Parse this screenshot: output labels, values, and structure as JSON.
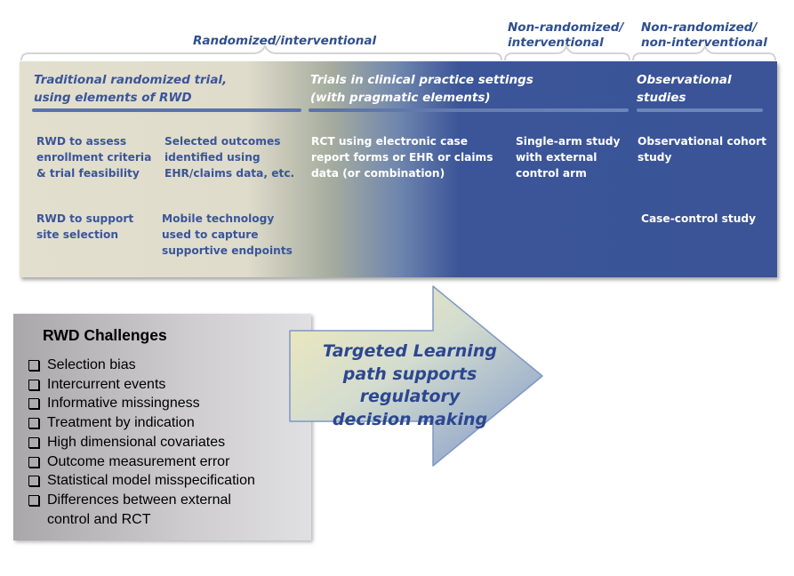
{
  "headers": {
    "randomized": "Randomized/interventional",
    "nonrand_interventional": [
      "Non-randomized/",
      "interventional"
    ],
    "nonrand_noninterventional": [
      "Non-randomized/",
      "non-interventional"
    ]
  },
  "sections": {
    "traditional": [
      "Traditional randomized trial,",
      "using elements of RWD"
    ],
    "practice": [
      "Trials in clinical practice settings",
      "(with pragmatic elements)"
    ],
    "observational": [
      "Observational",
      "studies"
    ]
  },
  "cells": {
    "enrollment": [
      "RWD to assess",
      "enrollment criteria",
      "& trial feasibility"
    ],
    "outcomes": [
      "Selected outcomes",
      "identified using",
      "EHR/claims data, etc."
    ],
    "site": [
      "RWD to support",
      "site selection"
    ],
    "mobile": [
      "Mobile technology",
      "used to capture",
      "supportive endpoints"
    ],
    "rct_ehr": [
      "RCT using electronic case",
      "report forms or EHR or claims",
      "data (or combination)"
    ],
    "single_arm": [
      "Single-arm study",
      "with external",
      "control arm"
    ],
    "cohort": [
      "Observational cohort",
      "study"
    ],
    "case_control": [
      "Case-control study"
    ]
  },
  "challenges": {
    "title": "RWD Challenges",
    "items": [
      "Selection bias",
      "Intercurrent events",
      "Informative missingness",
      "Treatment by indication",
      "High dimensional covariates",
      "Outcome measurement error",
      "Statistical model misspecification",
      "Differences between external control and RCT"
    ]
  },
  "arrow": {
    "lines": [
      "Targeted Learning",
      "path supports regulatory",
      "decision making"
    ]
  }
}
